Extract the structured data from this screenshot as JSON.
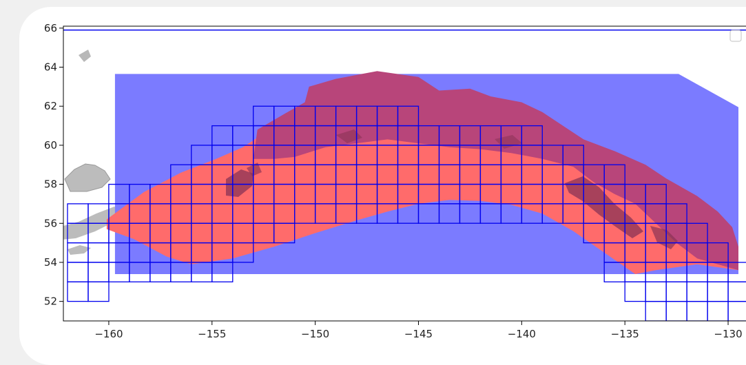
{
  "chart_data": {
    "type": "map-overlay",
    "title": "",
    "xlabel": "",
    "ylabel": "",
    "xlim": [
      -162.2,
      -128.9
    ],
    "ylim": [
      51.0,
      66.1
    ],
    "x_ticks": [
      -160,
      -155,
      -150,
      -145,
      -140,
      -135,
      -130
    ],
    "y_ticks": [
      52,
      54,
      56,
      58,
      60,
      62,
      64,
      66
    ],
    "x_tick_labels": [
      "−160",
      "−155",
      "−150",
      "−145",
      "−140",
      "−135",
      "−130"
    ],
    "y_tick_labels": [
      "52",
      "54",
      "56",
      "58",
      "60",
      "62",
      "64",
      "66"
    ],
    "grid": false,
    "legend": "top-right (empty)",
    "colors": {
      "blue_region": "#7b7bff",
      "red_region": "#ff6b6b",
      "overlap_region": "#b8457a",
      "land_gray": "#b0b0b0",
      "island_dark": "#8a3355",
      "grid_cells": "#0000ee",
      "top_line": "#0000ee"
    },
    "blue_region": [
      [
        -159.7,
        63.65
      ],
      [
        -132.4,
        63.65
      ],
      [
        -129.5,
        61.95
      ],
      [
        -129.5,
        53.4
      ],
      [
        -159.7,
        53.4
      ]
    ],
    "red_region": [
      [
        -160.1,
        56.2
      ],
      [
        -158.3,
        57.6
      ],
      [
        -156.5,
        58.6
      ],
      [
        -154.8,
        59.3
      ],
      [
        -153.5,
        59.9
      ],
      [
        -152.5,
        60.6
      ],
      [
        -151.0,
        60.9
      ],
      [
        -149.0,
        61.3
      ],
      [
        -147.0,
        61.2
      ],
      [
        -145.0,
        60.9
      ],
      [
        -143.0,
        61.0
      ],
      [
        -141.0,
        60.3
      ],
      [
        -139.0,
        59.9
      ],
      [
        -137.5,
        59.5
      ],
      [
        -135.5,
        58.8
      ],
      [
        -133.5,
        57.8
      ],
      [
        -131.5,
        56.6
      ],
      [
        -130.5,
        55.8
      ],
      [
        -129.5,
        54.8
      ],
      [
        -129.5,
        53.6
      ],
      [
        -131.5,
        53.9
      ],
      [
        -133.5,
        53.6
      ],
      [
        -134.5,
        53.4
      ],
      [
        -136.0,
        54.5
      ],
      [
        -137.5,
        55.6
      ],
      [
        -139.0,
        56.5
      ],
      [
        -140.5,
        56.95
      ],
      [
        -142.0,
        57.15
      ],
      [
        -143.5,
        57.2
      ],
      [
        -145.0,
        57.0
      ],
      [
        -146.5,
        56.6
      ],
      [
        -148.0,
        56.15
      ],
      [
        -150.0,
        55.5
      ],
      [
        -152.0,
        54.8
      ],
      [
        -154.0,
        54.2
      ],
      [
        -156.0,
        53.9
      ],
      [
        -157.2,
        54.3
      ],
      [
        -158.8,
        55.2
      ],
      [
        -160.1,
        55.7
      ]
    ],
    "overlap_region": [
      [
        -153.0,
        59.3
      ],
      [
        -152.8,
        60.8
      ],
      [
        -151.5,
        61.6
      ],
      [
        -150.5,
        62.2
      ],
      [
        -150.3,
        63.0
      ],
      [
        -149.0,
        63.4
      ],
      [
        -147.0,
        63.8
      ],
      [
        -145.0,
        63.5
      ],
      [
        -144.0,
        62.8
      ],
      [
        -142.5,
        62.9
      ],
      [
        -141.5,
        62.5
      ],
      [
        -140.0,
        62.2
      ],
      [
        -139.0,
        61.7
      ],
      [
        -138.0,
        61.0
      ],
      [
        -137.0,
        60.3
      ],
      [
        -135.5,
        59.7
      ],
      [
        -134.0,
        59.0
      ],
      [
        -133.0,
        58.3
      ],
      [
        -131.5,
        57.4
      ],
      [
        -130.5,
        56.6
      ],
      [
        -129.8,
        55.8
      ],
      [
        -129.5,
        54.8
      ],
      [
        -129.5,
        53.6
      ],
      [
        -131.5,
        54.2
      ],
      [
        -132.5,
        55.0
      ],
      [
        -133.5,
        56.0
      ],
      [
        -134.5,
        57.0
      ],
      [
        -135.5,
        57.5
      ],
      [
        -136.5,
        58.1
      ],
      [
        -137.5,
        58.9
      ],
      [
        -139.0,
        59.3
      ],
      [
        -140.5,
        59.6
      ],
      [
        -142.0,
        59.8
      ],
      [
        -143.5,
        59.9
      ],
      [
        -145.0,
        60.1
      ],
      [
        -146.5,
        60.3
      ],
      [
        -148.0,
        60.1
      ],
      [
        -149.5,
        59.9
      ],
      [
        -151.0,
        59.4
      ],
      [
        -152.0,
        59.3
      ]
    ],
    "grid_rows": [
      {
        "lat": 61,
        "lon_start": -153,
        "lon_end": -145
      },
      {
        "lat": 60,
        "lon_start": -155,
        "lon_end": -139
      },
      {
        "lat": 59,
        "lon_start": -156,
        "lon_end": -137
      },
      {
        "lat": 58,
        "lon_start": -157,
        "lon_end": -135
      },
      {
        "lat": 57,
        "lon_start": -160,
        "lon_end": -133
      },
      {
        "lat": 56,
        "lon_start": -162,
        "lon_end": -132
      },
      {
        "lat": 55,
        "lon_start": -162,
        "lon_end": -151
      },
      {
        "lat": 55,
        "lon_start": -137,
        "lon_end": -131
      },
      {
        "lat": 54,
        "lon_start": -162,
        "lon_end": -153
      },
      {
        "lat": 54,
        "lon_start": -136,
        "lon_end": -130
      },
      {
        "lat": 53,
        "lon_start": -162,
        "lon_end": -154
      },
      {
        "lat": 53,
        "lon_start": -136,
        "lon_end": -129
      },
      {
        "lat": 52,
        "lon_start": -162,
        "lon_end": -160
      },
      {
        "lat": 52,
        "lon_start": -135,
        "lon_end": -129
      },
      {
        "lat": 51,
        "lon_start": -134,
        "lon_end": -129
      }
    ],
    "top_line_lat": 65.9
  }
}
